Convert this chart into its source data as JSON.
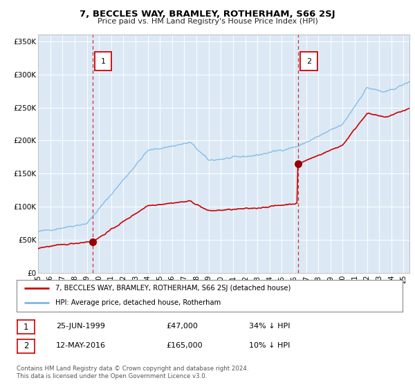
{
  "title": "7, BECCLES WAY, BRAMLEY, ROTHERHAM, S66 2SJ",
  "subtitle": "Price paid vs. HM Land Registry's House Price Index (HPI)",
  "bg_color": "#dce9f5",
  "hpi_color": "#7ab8e8",
  "price_color": "#cc0000",
  "marker_color": "#990000",
  "vline_color": "#cc0000",
  "annotation_box_color": "#cc0000",
  "ylim": [
    0,
    360000
  ],
  "yticks": [
    0,
    50000,
    100000,
    150000,
    200000,
    250000,
    300000,
    350000
  ],
  "ytick_labels": [
    "£0",
    "£50K",
    "£100K",
    "£150K",
    "£200K",
    "£250K",
    "£300K",
    "£350K"
  ],
  "sale1_year": 1999.48,
  "sale1_price": 47000,
  "sale1_label": "1",
  "sale2_year": 2016.36,
  "sale2_price": 165000,
  "sale2_label": "2",
  "legend_entry1": "7, BECCLES WAY, BRAMLEY, ROTHERHAM, S66 2SJ (detached house)",
  "legend_entry2": "HPI: Average price, detached house, Rotherham",
  "table_row1_num": "1",
  "table_row1_date": "25-JUN-1999",
  "table_row1_price": "£47,000",
  "table_row1_hpi": "34% ↓ HPI",
  "table_row2_num": "2",
  "table_row2_date": "12-MAY-2016",
  "table_row2_price": "£165,000",
  "table_row2_hpi": "10% ↓ HPI",
  "footnote": "Contains HM Land Registry data © Crown copyright and database right 2024.\nThis data is licensed under the Open Government Licence v3.0.",
  "xmin": 1995.0,
  "xmax": 2025.5
}
